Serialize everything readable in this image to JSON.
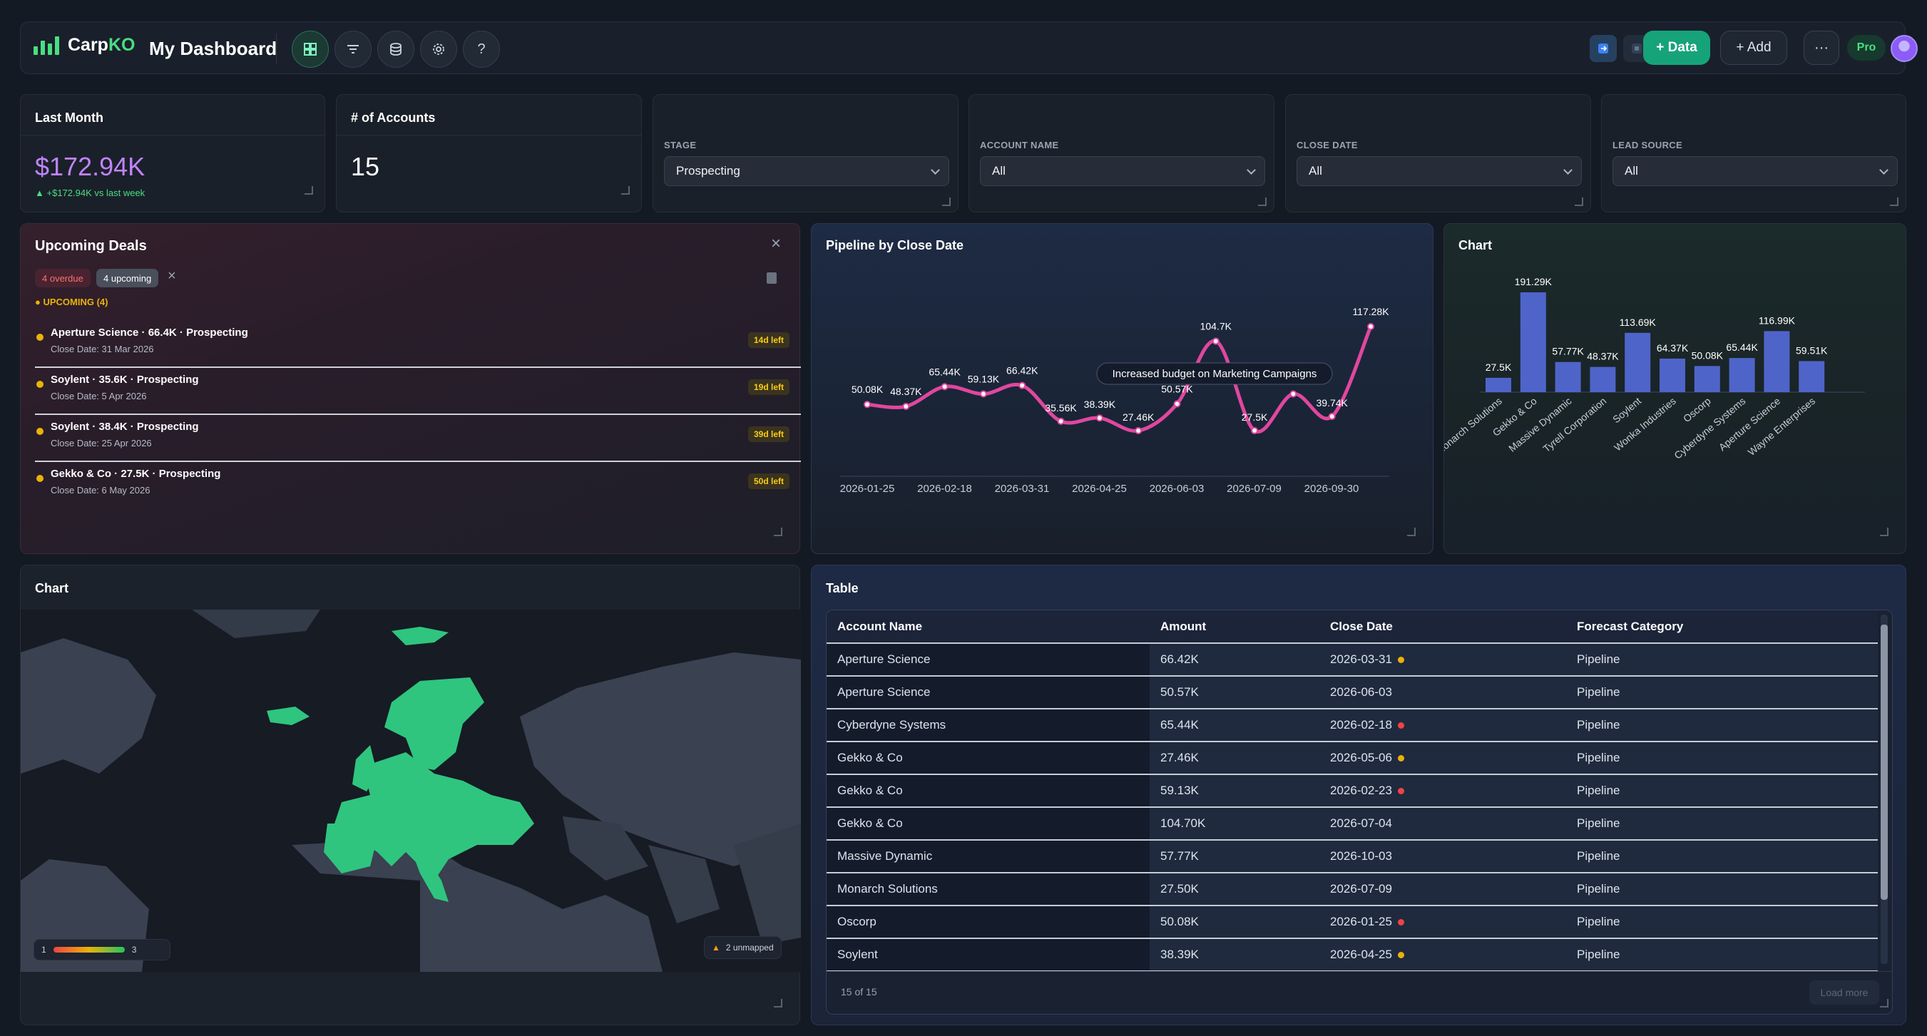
{
  "app": {
    "brand_a": "Carp",
    "brand_b": "KO",
    "title": "My Dashboard"
  },
  "toolbar": {
    "icons": [
      "layout-grid-icon",
      "filter-icon",
      "database-icon",
      "settings-icon",
      "help-icon"
    ],
    "help_label": "?",
    "data_label": "+ Data",
    "add_label": "+ Add",
    "more_label": "···",
    "plan_badge": "Pro"
  },
  "kpis": {
    "last_month": {
      "title": "Last Month",
      "value": "$172.94K",
      "delta": "+$172.94K vs last week"
    },
    "accounts": {
      "title": "# of Accounts",
      "value": "15"
    }
  },
  "filters": [
    {
      "label": "STAGE",
      "value": "Prospecting"
    },
    {
      "label": "ACCOUNT NAME",
      "value": "All"
    },
    {
      "label": "CLOSE DATE",
      "value": "All"
    },
    {
      "label": "LEAD SOURCE",
      "value": "All"
    }
  ],
  "deals": {
    "title": "Upcoming Deals",
    "overdue": "4 overdue",
    "upcoming": "4 upcoming",
    "group": "UPCOMING (4)",
    "items": [
      {
        "name": "Aperture Science · 66.4K · Prospecting",
        "date": "Close Date: 31 Mar 2026",
        "left": "14d left"
      },
      {
        "name": "Soylent · 35.6K · Prospecting",
        "date": "Close Date: 5 Apr 2026",
        "left": "19d left"
      },
      {
        "name": "Soylent · 38.4K · Prospecting",
        "date": "Close Date: 25 Apr 2026",
        "left": "39d left"
      },
      {
        "name": "Gekko & Co · 27.5K · Prospecting",
        "date": "Close Date: 6 May 2026",
        "left": "50d left"
      }
    ]
  },
  "pipeline": {
    "title": "Pipeline by Close Date",
    "annotation": "Increased budget on Marketing Campaigns",
    "x_ticks": [
      "2026-01-25",
      "2026-02-18",
      "2026-03-31",
      "2026-04-25",
      "2026-06-03",
      "2026-07-09",
      "2026-09-30"
    ],
    "values": [
      50.08,
      48.37,
      65.44,
      59.13,
      66.42,
      35.56,
      38.39,
      27.46,
      50.57,
      104.7,
      27.5,
      59.13,
      39.74,
      117.28
    ],
    "labels": [
      "50.08K",
      "48.37K",
      "65.44K",
      "59.13K",
      "66.42K",
      "35.56K",
      "38.39K",
      "27.46K",
      "50.57K",
      "104.7K",
      "27.5K",
      "",
      "39.74K",
      "117.28K"
    ],
    "line_color": "#e0479e"
  },
  "chart_data": [
    {
      "type": "line",
      "title": "Pipeline by Close Date",
      "x_ticks": [
        "2026-01-25",
        "2026-02-18",
        "2026-03-31",
        "2026-04-25",
        "2026-06-03",
        "2026-07-09",
        "2026-09-30"
      ],
      "values": [
        50.08,
        48.37,
        65.44,
        59.13,
        66.42,
        35.56,
        38.39,
        27.46,
        50.57,
        104.7,
        27.5,
        59.13,
        39.74,
        117.28
      ],
      "unit": "K",
      "annotation": "Increased budget on Marketing Campaigns"
    },
    {
      "type": "bar",
      "title": "Chart",
      "categories": [
        "Monarch Solutions",
        "Gekko & Co",
        "Massive Dynamic",
        "Tyrell Corporation",
        "Soylent",
        "Wonka Industries",
        "Oscorp",
        "Cyberdyne Systems",
        "Aperture Science",
        "Wayne Enterprises"
      ],
      "values": [
        27.5,
        191.29,
        57.77,
        48.37,
        113.69,
        64.37,
        50.08,
        65.44,
        116.99,
        59.51
      ],
      "unit": "K"
    }
  ],
  "bars": {
    "title": "Chart",
    "categories": [
      "Monarch Solutions",
      "Gekko & Co",
      "Massive Dynamic",
      "Tyrell Corporation",
      "Soylent",
      "Wonka Industries",
      "Oscorp",
      "Cyberdyne Systems",
      "Aperture Science",
      "Wayne Enterprises"
    ],
    "values": [
      27.5,
      191.29,
      57.77,
      48.37,
      113.69,
      64.37,
      50.08,
      65.44,
      116.99,
      59.51
    ],
    "labels": [
      "27.5K",
      "191.29K",
      "57.77K",
      "48.37K",
      "113.69K",
      "64.37K",
      "50.08K",
      "65.44K",
      "116.99K",
      "59.51K"
    ],
    "color": "#4f64c9"
  },
  "map": {
    "title": "Chart",
    "legend_min": "1",
    "legend_max": "3",
    "unmapped": "2 unmapped",
    "fill": "#2fc57f"
  },
  "table": {
    "title": "Table",
    "columns": [
      "Account Name",
      "Amount",
      "Close Date",
      "Forecast Category"
    ],
    "rows": [
      {
        "account": "Aperture Science",
        "amount": "66.42K",
        "date": "2026-03-31",
        "dot": "#eab308",
        "forecast": "Pipeline"
      },
      {
        "account": "Aperture Science",
        "amount": "50.57K",
        "date": "2026-06-03",
        "dot": "",
        "forecast": "Pipeline"
      },
      {
        "account": "Cyberdyne Systems",
        "amount": "65.44K",
        "date": "2026-02-18",
        "dot": "#ef4444",
        "forecast": "Pipeline"
      },
      {
        "account": "Gekko & Co",
        "amount": "27.46K",
        "date": "2026-05-06",
        "dot": "#eab308",
        "forecast": "Pipeline"
      },
      {
        "account": "Gekko & Co",
        "amount": "59.13K",
        "date": "2026-02-23",
        "dot": "#ef4444",
        "forecast": "Pipeline"
      },
      {
        "account": "Gekko & Co",
        "amount": "104.70K",
        "date": "2026-07-04",
        "dot": "",
        "forecast": "Pipeline"
      },
      {
        "account": "Massive Dynamic",
        "amount": "57.77K",
        "date": "2026-10-03",
        "dot": "",
        "forecast": "Pipeline"
      },
      {
        "account": "Monarch Solutions",
        "amount": "27.50K",
        "date": "2026-07-09",
        "dot": "",
        "forecast": "Pipeline"
      },
      {
        "account": "Oscorp",
        "amount": "50.08K",
        "date": "2026-01-25",
        "dot": "#ef4444",
        "forecast": "Pipeline"
      },
      {
        "account": "Soylent",
        "amount": "38.39K",
        "date": "2026-04-25",
        "dot": "#eab308",
        "forecast": "Pipeline"
      }
    ],
    "count": "15 of 15",
    "load_more": "Load more"
  }
}
